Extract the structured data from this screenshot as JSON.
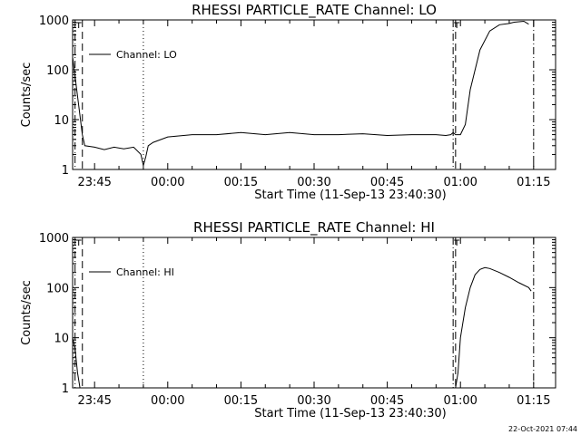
{
  "chart_data": [
    {
      "type": "line",
      "title": "RHESSI PARTICLE_RATE Channel: LO",
      "xlabel": "Start Time (11-Sep-13 23:40:30)",
      "ylabel": "Counts/sec",
      "yscale": "log",
      "ylim": [
        1,
        1000
      ],
      "xlim": [
        "23:40:30",
        "01:19:30"
      ],
      "xticks": [
        "23:45",
        "00:00",
        "00:15",
        "00:30",
        "00:45",
        "01:00",
        "01:15"
      ],
      "yticks": [
        "1",
        "10",
        "100",
        "1000"
      ],
      "legend": {
        "position": "top-left",
        "entries": [
          "Channel: LO"
        ]
      },
      "vlines": [
        {
          "x": "23:41:00",
          "style": "dash-dot"
        },
        {
          "x": "23:42:30",
          "style": "dashed"
        },
        {
          "x": "23:55:00",
          "style": "dotted"
        },
        {
          "x": "00:58:30",
          "style": "dash-dot"
        },
        {
          "x": "00:59:00",
          "style": "dashed"
        },
        {
          "x": "01:15:00",
          "style": "dash-dot"
        }
      ],
      "series": [
        {
          "name": "Channel: LO",
          "x": [
            "23:40:30",
            "23:42:00",
            "23:42:30",
            "23:43:00",
            "23:45:00",
            "23:47:00",
            "23:49:00",
            "23:51:00",
            "23:53:00",
            "23:54:30",
            "23:55:00",
            "23:55:30",
            "23:56:00",
            "23:57:00",
            "00:00:00",
            "00:05:00",
            "00:10:00",
            "00:15:00",
            "00:20:00",
            "00:25:00",
            "00:30:00",
            "00:35:00",
            "00:40:00",
            "00:45:00",
            "00:50:00",
            "00:55:00",
            "00:57:00",
            "00:58:00",
            "00:58:30",
            "00:59:00",
            "01:00:00",
            "01:01:00",
            "01:02:00",
            "01:04:00",
            "01:06:00",
            "01:08:00",
            "01:10:00",
            "01:11:00",
            "01:12:00",
            "01:13:00",
            "01:14:00"
          ],
          "values": [
            180,
            12,
            5,
            3,
            2.8,
            2.5,
            2.8,
            2.6,
            2.8,
            2.0,
            1.2,
            1.8,
            3.0,
            3.5,
            4.5,
            5.0,
            5.0,
            5.5,
            5.0,
            5.5,
            5.0,
            5.0,
            5.2,
            4.8,
            5.0,
            5.0,
            4.8,
            5.0,
            5.5,
            5,
            5,
            8,
            40,
            250,
            600,
            800,
            850,
            900,
            920,
            940,
            820
          ]
        }
      ]
    },
    {
      "type": "line",
      "title": "RHESSI PARTICLE_RATE Channel: HI",
      "xlabel": "Start Time (11-Sep-13 23:40:30)",
      "ylabel": "Counts/sec",
      "yscale": "log",
      "ylim": [
        1,
        1000
      ],
      "xlim": [
        "23:40:30",
        "01:19:30"
      ],
      "xticks": [
        "23:45",
        "00:00",
        "00:15",
        "00:30",
        "00:45",
        "01:00",
        "01:15"
      ],
      "yticks": [
        "1",
        "10",
        "100",
        "1000"
      ],
      "legend": {
        "position": "top-left",
        "entries": [
          "Channel: HI"
        ]
      },
      "vlines": [
        {
          "x": "23:41:00",
          "style": "dash-dot"
        },
        {
          "x": "23:42:30",
          "style": "dashed"
        },
        {
          "x": "23:55:00",
          "style": "dotted"
        },
        {
          "x": "00:58:30",
          "style": "dash-dot"
        },
        {
          "x": "00:59:00",
          "style": "dashed"
        },
        {
          "x": "01:15:00",
          "style": "dash-dot"
        }
      ],
      "series": [
        {
          "name": "Channel: HI",
          "x": [
            "23:40:30",
            "23:41:00",
            "23:41:30",
            "23:42:00",
            "00:59:00",
            "00:59:30",
            "01:00:00",
            "01:01:00",
            "01:02:00",
            "01:03:00",
            "01:04:00",
            "01:05:00",
            "01:06:00",
            "01:08:00",
            "01:10:00",
            "01:12:00",
            "01:14:00",
            "01:14:30"
          ],
          "values": [
            10,
            6,
            2,
            1,
            1,
            2,
            10,
            40,
            100,
            180,
            230,
            250,
            240,
            200,
            160,
            125,
            100,
            85
          ]
        }
      ]
    }
  ],
  "footer": {
    "timestamp": "22-Oct-2021 07:44"
  }
}
